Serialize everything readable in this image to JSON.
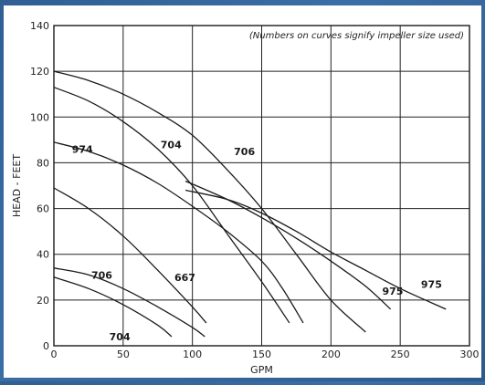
{
  "chart_data": {
    "type": "line",
    "xlabel": "GPM",
    "ylabel": "HEAD - FEET",
    "annotation": "(Numbers on curves signify impeller size used)",
    "xlim": [
      0,
      300
    ],
    "ylim": [
      0,
      140
    ],
    "x_ticks": [
      0,
      50,
      100,
      150,
      200,
      250,
      300
    ],
    "y_ticks": [
      0,
      20,
      40,
      60,
      80,
      100,
      120,
      140
    ],
    "grid": true,
    "series": [
      {
        "name": "706",
        "label_at": [
          130,
          85
        ],
        "points": [
          [
            0,
            120
          ],
          [
            25,
            116
          ],
          [
            50,
            110
          ],
          [
            75,
            102
          ],
          [
            100,
            92
          ],
          [
            125,
            77
          ],
          [
            150,
            60
          ],
          [
            175,
            40
          ],
          [
            200,
            20
          ],
          [
            225,
            6
          ]
        ]
      },
      {
        "name": "704",
        "label_at": [
          77,
          88
        ],
        "points": [
          [
            0,
            113
          ],
          [
            25,
            107
          ],
          [
            50,
            98
          ],
          [
            75,
            86
          ],
          [
            100,
            70
          ],
          [
            125,
            49
          ],
          [
            150,
            28
          ],
          [
            170,
            10
          ]
        ]
      },
      {
        "name": "974",
        "label_at": [
          13,
          86
        ],
        "points": [
          [
            0,
            89
          ],
          [
            25,
            85
          ],
          [
            50,
            79
          ],
          [
            75,
            71
          ],
          [
            100,
            61
          ],
          [
            125,
            50
          ],
          [
            150,
            37
          ],
          [
            165,
            25
          ],
          [
            180,
            10
          ]
        ]
      },
      {
        "name": "667",
        "label_at": [
          87,
          30
        ],
        "points": [
          [
            0,
            69
          ],
          [
            25,
            60
          ],
          [
            50,
            48
          ],
          [
            75,
            33
          ],
          [
            100,
            17
          ],
          [
            110,
            10
          ]
        ]
      },
      {
        "name": "706",
        "label_at": [
          27,
          31
        ],
        "points": [
          [
            0,
            34
          ],
          [
            25,
            31
          ],
          [
            50,
            25
          ],
          [
            75,
            17
          ],
          [
            100,
            8
          ],
          [
            109,
            4
          ]
        ]
      },
      {
        "name": "704",
        "label_at": [
          40,
          4
        ],
        "points": [
          [
            0,
            30
          ],
          [
            25,
            25
          ],
          [
            50,
            18
          ],
          [
            75,
            9
          ],
          [
            85,
            4
          ]
        ]
      },
      {
        "name": "975",
        "label_at": [
          237,
          24
        ],
        "points": [
          [
            95,
            72
          ],
          [
            125,
            64
          ],
          [
            150,
            56
          ],
          [
            175,
            47
          ],
          [
            200,
            37
          ],
          [
            225,
            26
          ],
          [
            243,
            16
          ]
        ]
      },
      {
        "name": "975",
        "label_at": [
          265,
          27
        ],
        "points": [
          [
            95,
            68
          ],
          [
            125,
            64
          ],
          [
            150,
            58
          ],
          [
            175,
            50
          ],
          [
            200,
            41
          ],
          [
            225,
            33
          ],
          [
            250,
            25
          ],
          [
            283,
            16
          ]
        ]
      }
    ]
  }
}
